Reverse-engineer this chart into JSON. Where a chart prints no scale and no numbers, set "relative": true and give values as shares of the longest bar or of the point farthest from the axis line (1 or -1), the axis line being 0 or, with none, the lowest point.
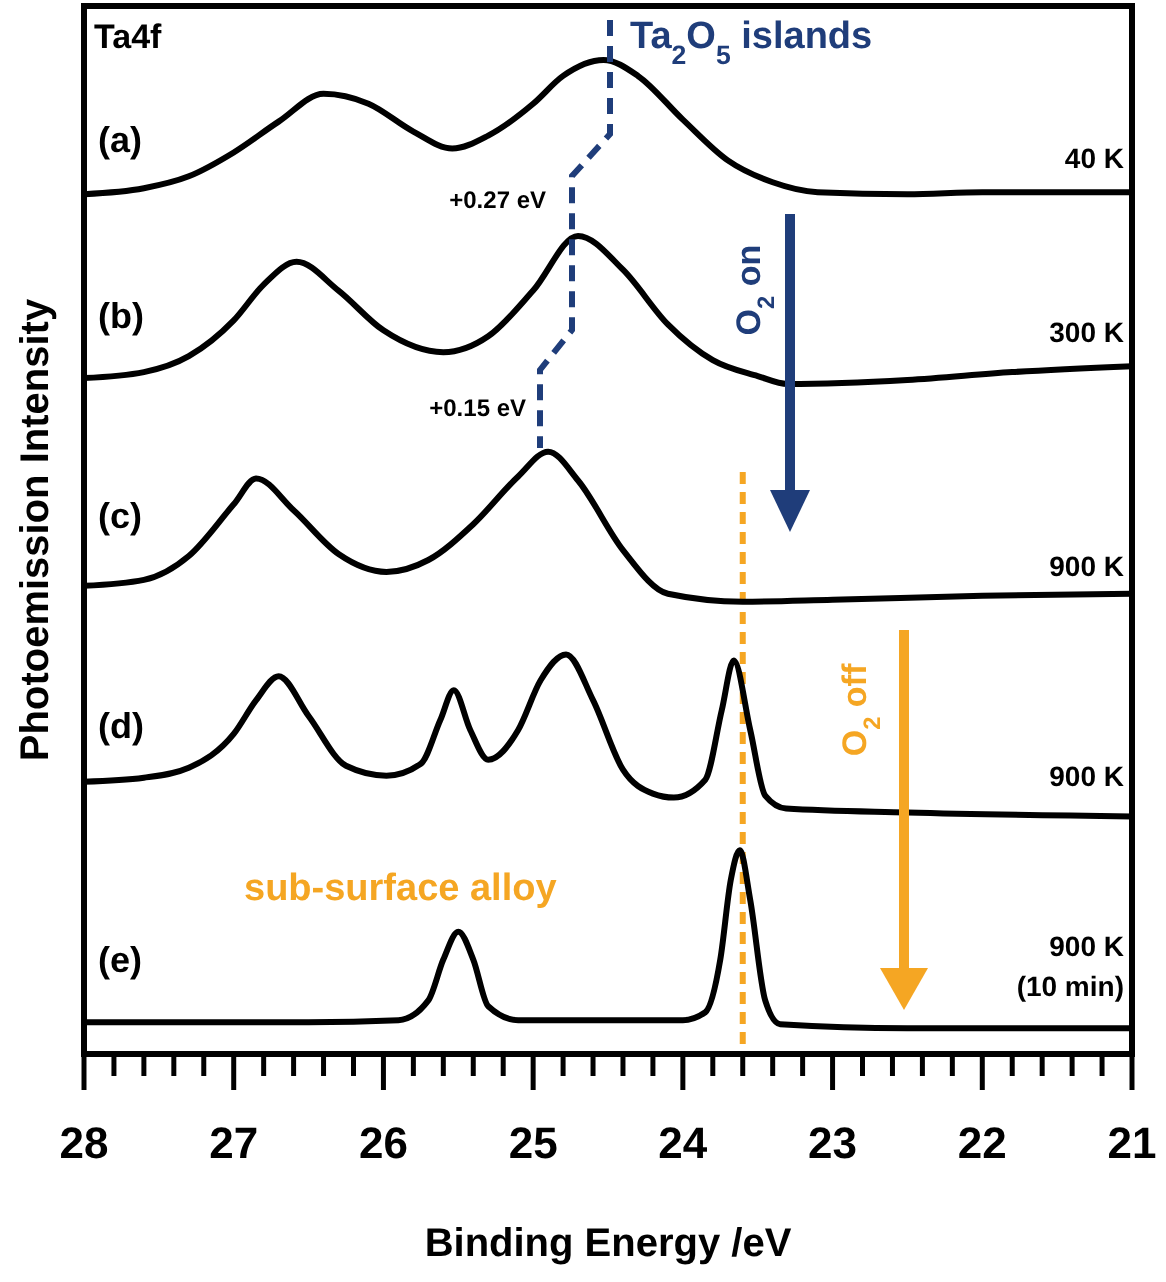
{
  "chart_data": {
    "type": "line",
    "relative": true,
    "xlabel": "Binding Energy /eV",
    "ylabel": "Photoemission Intensity",
    "grid": false,
    "tick_labels": "x",
    "marker": "none",
    "line_style": "solid",
    "xlim": [
      28,
      21
    ],
    "xticks": [
      28,
      {
        "value": 27.8,
        "label": null
      },
      {
        "value": 27.6,
        "label": null
      },
      {
        "value": 27.4,
        "label": null
      },
      {
        "value": 27.2,
        "label": null
      },
      27,
      {
        "value": 26.8,
        "label": null
      },
      {
        "value": 26.6,
        "label": null
      },
      {
        "value": 26.4,
        "label": null
      },
      {
        "value": 26.2,
        "label": null
      },
      26,
      {
        "value": 25.8,
        "label": null
      },
      {
        "value": 25.6,
        "label": null
      },
      {
        "value": 25.4,
        "label": null
      },
      {
        "value": 25.2,
        "label": null
      },
      25,
      {
        "value": 24.8,
        "label": null
      },
      {
        "value": 24.6,
        "label": null
      },
      {
        "value": 24.4,
        "label": null
      },
      {
        "value": 24.2,
        "label": null
      },
      24,
      {
        "value": 23.8,
        "label": null
      },
      {
        "value": 23.6,
        "label": null
      },
      {
        "value": 23.4,
        "label": null
      },
      {
        "value": 23.2,
        "label": null
      },
      23,
      {
        "value": 22.8,
        "label": null
      },
      {
        "value": 22.6,
        "label": null
      },
      {
        "value": 22.4,
        "label": null
      },
      {
        "value": 22.2,
        "label": null
      },
      22,
      {
        "value": 21.8,
        "label": null
      },
      {
        "value": 21.6,
        "label": null
      },
      {
        "value": 21.4,
        "label": null
      },
      {
        "value": 21.2,
        "label": null
      },
      21
    ],
    "series": [
      {
        "color": "#000000",
        "x": [
          28,
          27.6,
          27.3,
          27,
          26.7,
          26.4,
          26.1,
          25.8,
          25.54,
          25.3,
          25,
          24.8,
          24.53,
          24.3,
          24,
          23.7,
          23.4,
          23.1,
          22.5,
          22,
          21
        ],
        "values": [
          0.865,
          0.871,
          0.883,
          0.907,
          0.938,
          0.966,
          0.956,
          0.928,
          0.911,
          0.924,
          0.956,
          0.984,
          1.0,
          0.984,
          0.94,
          0.899,
          0.877,
          0.867,
          0.865,
          0.867,
          0.867
        ]
      },
      {
        "color": "#000000",
        "x": [
          28,
          27.6,
          27.3,
          27,
          26.8,
          26.58,
          26.3,
          26,
          25.6,
          25.3,
          25,
          24.7,
          24.4,
          24.1,
          23.8,
          23.5,
          23.3,
          22.5,
          21.8,
          21
        ],
        "values": [
          0.68,
          0.686,
          0.702,
          0.738,
          0.774,
          0.797,
          0.768,
          0.728,
          0.706,
          0.722,
          0.768,
          0.823,
          0.789,
          0.734,
          0.698,
          0.682,
          0.674,
          0.678,
          0.686,
          0.692
        ]
      },
      {
        "color": "#000000",
        "x": [
          28,
          27.6,
          27.3,
          27,
          26.85,
          26.6,
          26.3,
          25.98,
          25.7,
          25.4,
          25.1,
          24.9,
          24.7,
          24.4,
          24.1,
          23.6,
          23,
          22,
          21
        ],
        "values": [
          0.471,
          0.477,
          0.501,
          0.553,
          0.579,
          0.547,
          0.503,
          0.485,
          0.497,
          0.533,
          0.581,
          0.606,
          0.577,
          0.507,
          0.463,
          0.455,
          0.457,
          0.461,
          0.463
        ]
      },
      {
        "color": "#000000",
        "x": [
          28,
          27.6,
          27.3,
          27,
          26.85,
          26.7,
          26.5,
          26.25,
          25.98,
          25.75,
          25.62,
          25.53,
          25.42,
          25.3,
          25.1,
          24.95,
          24.78,
          24.6,
          24.4,
          24.2,
          24.06,
          23.85,
          23.74,
          23.66,
          23.55,
          23.45,
          23.31,
          22.5,
          21
        ],
        "values": [
          0.274,
          0.278,
          0.288,
          0.322,
          0.356,
          0.38,
          0.34,
          0.29,
          0.28,
          0.292,
          0.336,
          0.366,
          0.326,
          0.296,
          0.326,
          0.376,
          0.402,
          0.356,
          0.286,
          0.262,
          0.258,
          0.276,
          0.346,
          0.396,
          0.326,
          0.26,
          0.247,
          0.243,
          0.239
        ]
      },
      {
        "color": "#000000",
        "x": [
          28,
          26.5,
          25.9,
          25.7,
          25.6,
          25.5,
          25.4,
          25.3,
          25.1,
          24.5,
          24,
          23.85,
          23.75,
          23.68,
          23.62,
          23.55,
          23.45,
          23.35,
          22.5,
          21
        ],
        "values": [
          0.032,
          0.032,
          0.034,
          0.054,
          0.095,
          0.123,
          0.095,
          0.048,
          0.034,
          0.034,
          0.034,
          0.042,
          0.095,
          0.175,
          0.205,
          0.155,
          0.054,
          0.03,
          0.026,
          0.026
        ]
      }
    ],
    "ref_lines": [
      {
        "axis": "x",
        "value": 23.6,
        "color": "#f5a623",
        "line_style": "dashed"
      }
    ],
    "annotations": [
      "Ta4f",
      "Ta$_{2}$O$_{5}$ islands",
      "+0.27 eV",
      "+0.15 eV",
      "O$_{2}$ on",
      "O$_{2}$ off",
      "sub-surface alloy",
      "(a)",
      "(b)",
      "(c)",
      "(d)",
      "(e)",
      "40 K",
      "300 K",
      "900 K",
      "900 K",
      "900 K",
      "(10 min)"
    ]
  }
}
